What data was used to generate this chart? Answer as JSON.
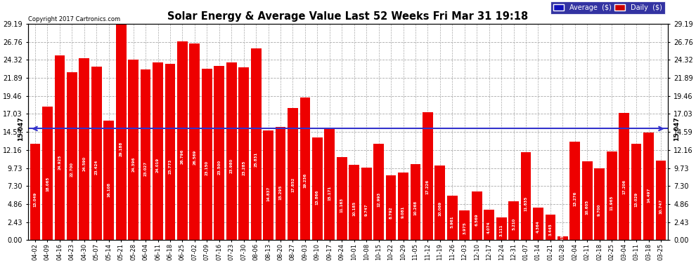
{
  "title": "Solar Energy & Average Value Last 52 Weeks Fri Mar 31 19:18",
  "copyright": "Copyright 2017 Cartronics.com",
  "average_label": "15.047",
  "average_value": 15.047,
  "ylim": [
    0,
    29.19
  ],
  "yticks": [
    0.0,
    2.43,
    4.86,
    7.3,
    9.73,
    12.16,
    14.59,
    17.03,
    19.46,
    21.89,
    24.32,
    26.76,
    29.19
  ],
  "bar_color": "#ee0000",
  "average_line_color": "#3333cc",
  "background_color": "#ffffff",
  "grid_color": "#aaaaaa",
  "categories": [
    "04-02",
    "04-09",
    "04-16",
    "04-23",
    "04-30",
    "05-07",
    "05-14",
    "05-21",
    "05-28",
    "06-04",
    "06-11",
    "06-18",
    "06-25",
    "07-02",
    "07-09",
    "07-16",
    "07-23",
    "07-30",
    "08-06",
    "08-13",
    "08-20",
    "08-27",
    "09-03",
    "09-10",
    "09-17",
    "09-24",
    "10-01",
    "10-08",
    "10-15",
    "10-22",
    "10-29",
    "11-05",
    "11-12",
    "11-19",
    "11-26",
    "12-03",
    "12-10",
    "12-17",
    "12-24",
    "12-31",
    "01-07",
    "01-14",
    "01-21",
    "01-28",
    "02-04",
    "02-11",
    "02-18",
    "02-25",
    "03-04",
    "03-11",
    "03-18",
    "03-25"
  ],
  "values": [
    13.049,
    18.065,
    24.925,
    22.7,
    24.59,
    23.424,
    16.108,
    29.188,
    24.396,
    23.027,
    24.019,
    23.773,
    26.796,
    26.569,
    23.15,
    23.5,
    23.98,
    23.285,
    25.831,
    14.837,
    15.295,
    17.852,
    19.236,
    13.866,
    15.171,
    11.163,
    10.185,
    9.747,
    12.993,
    8.792,
    9.081,
    10.268,
    17.226,
    10.069,
    5.961,
    3.975,
    6.569,
    4.074,
    3.111,
    5.21,
    11.835,
    4.364,
    3.445,
    0.554,
    13.276,
    10.605,
    9.7,
    11.965,
    17.206,
    13.029,
    14.497,
    10.747
  ],
  "legend_avg_color": "#1111bb",
  "legend_daily_color": "#cc0000",
  "legend_bg_color": "#00008b"
}
